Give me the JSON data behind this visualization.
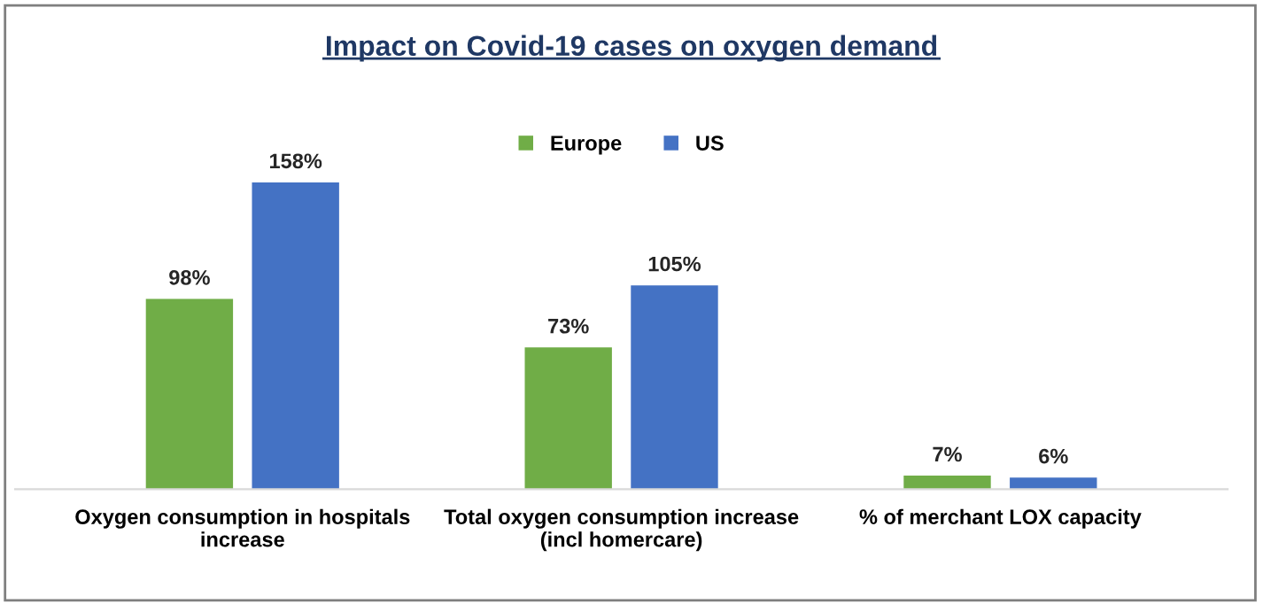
{
  "chart_data": {
    "type": "bar",
    "title": "Impact on Covid-19 cases on oxygen demand",
    "categories": [
      "Oxygen consumption in hospitals\nincrease",
      "Total oxygen consumption increase\n(incl homercare)",
      "% of merchant LOX capacity"
    ],
    "series": [
      {
        "name": "Europe",
        "color": "#70ad47",
        "values": [
          98,
          73,
          7
        ],
        "value_labels": [
          "98%",
          "73%",
          "7%"
        ]
      },
      {
        "name": "US",
        "color": "#4472c4",
        "values": [
          158,
          105,
          6
        ],
        "value_labels": [
          "158%",
          "105%",
          "6%"
        ]
      }
    ],
    "legend": "top",
    "grid": false,
    "tick_labels": "x"
  }
}
